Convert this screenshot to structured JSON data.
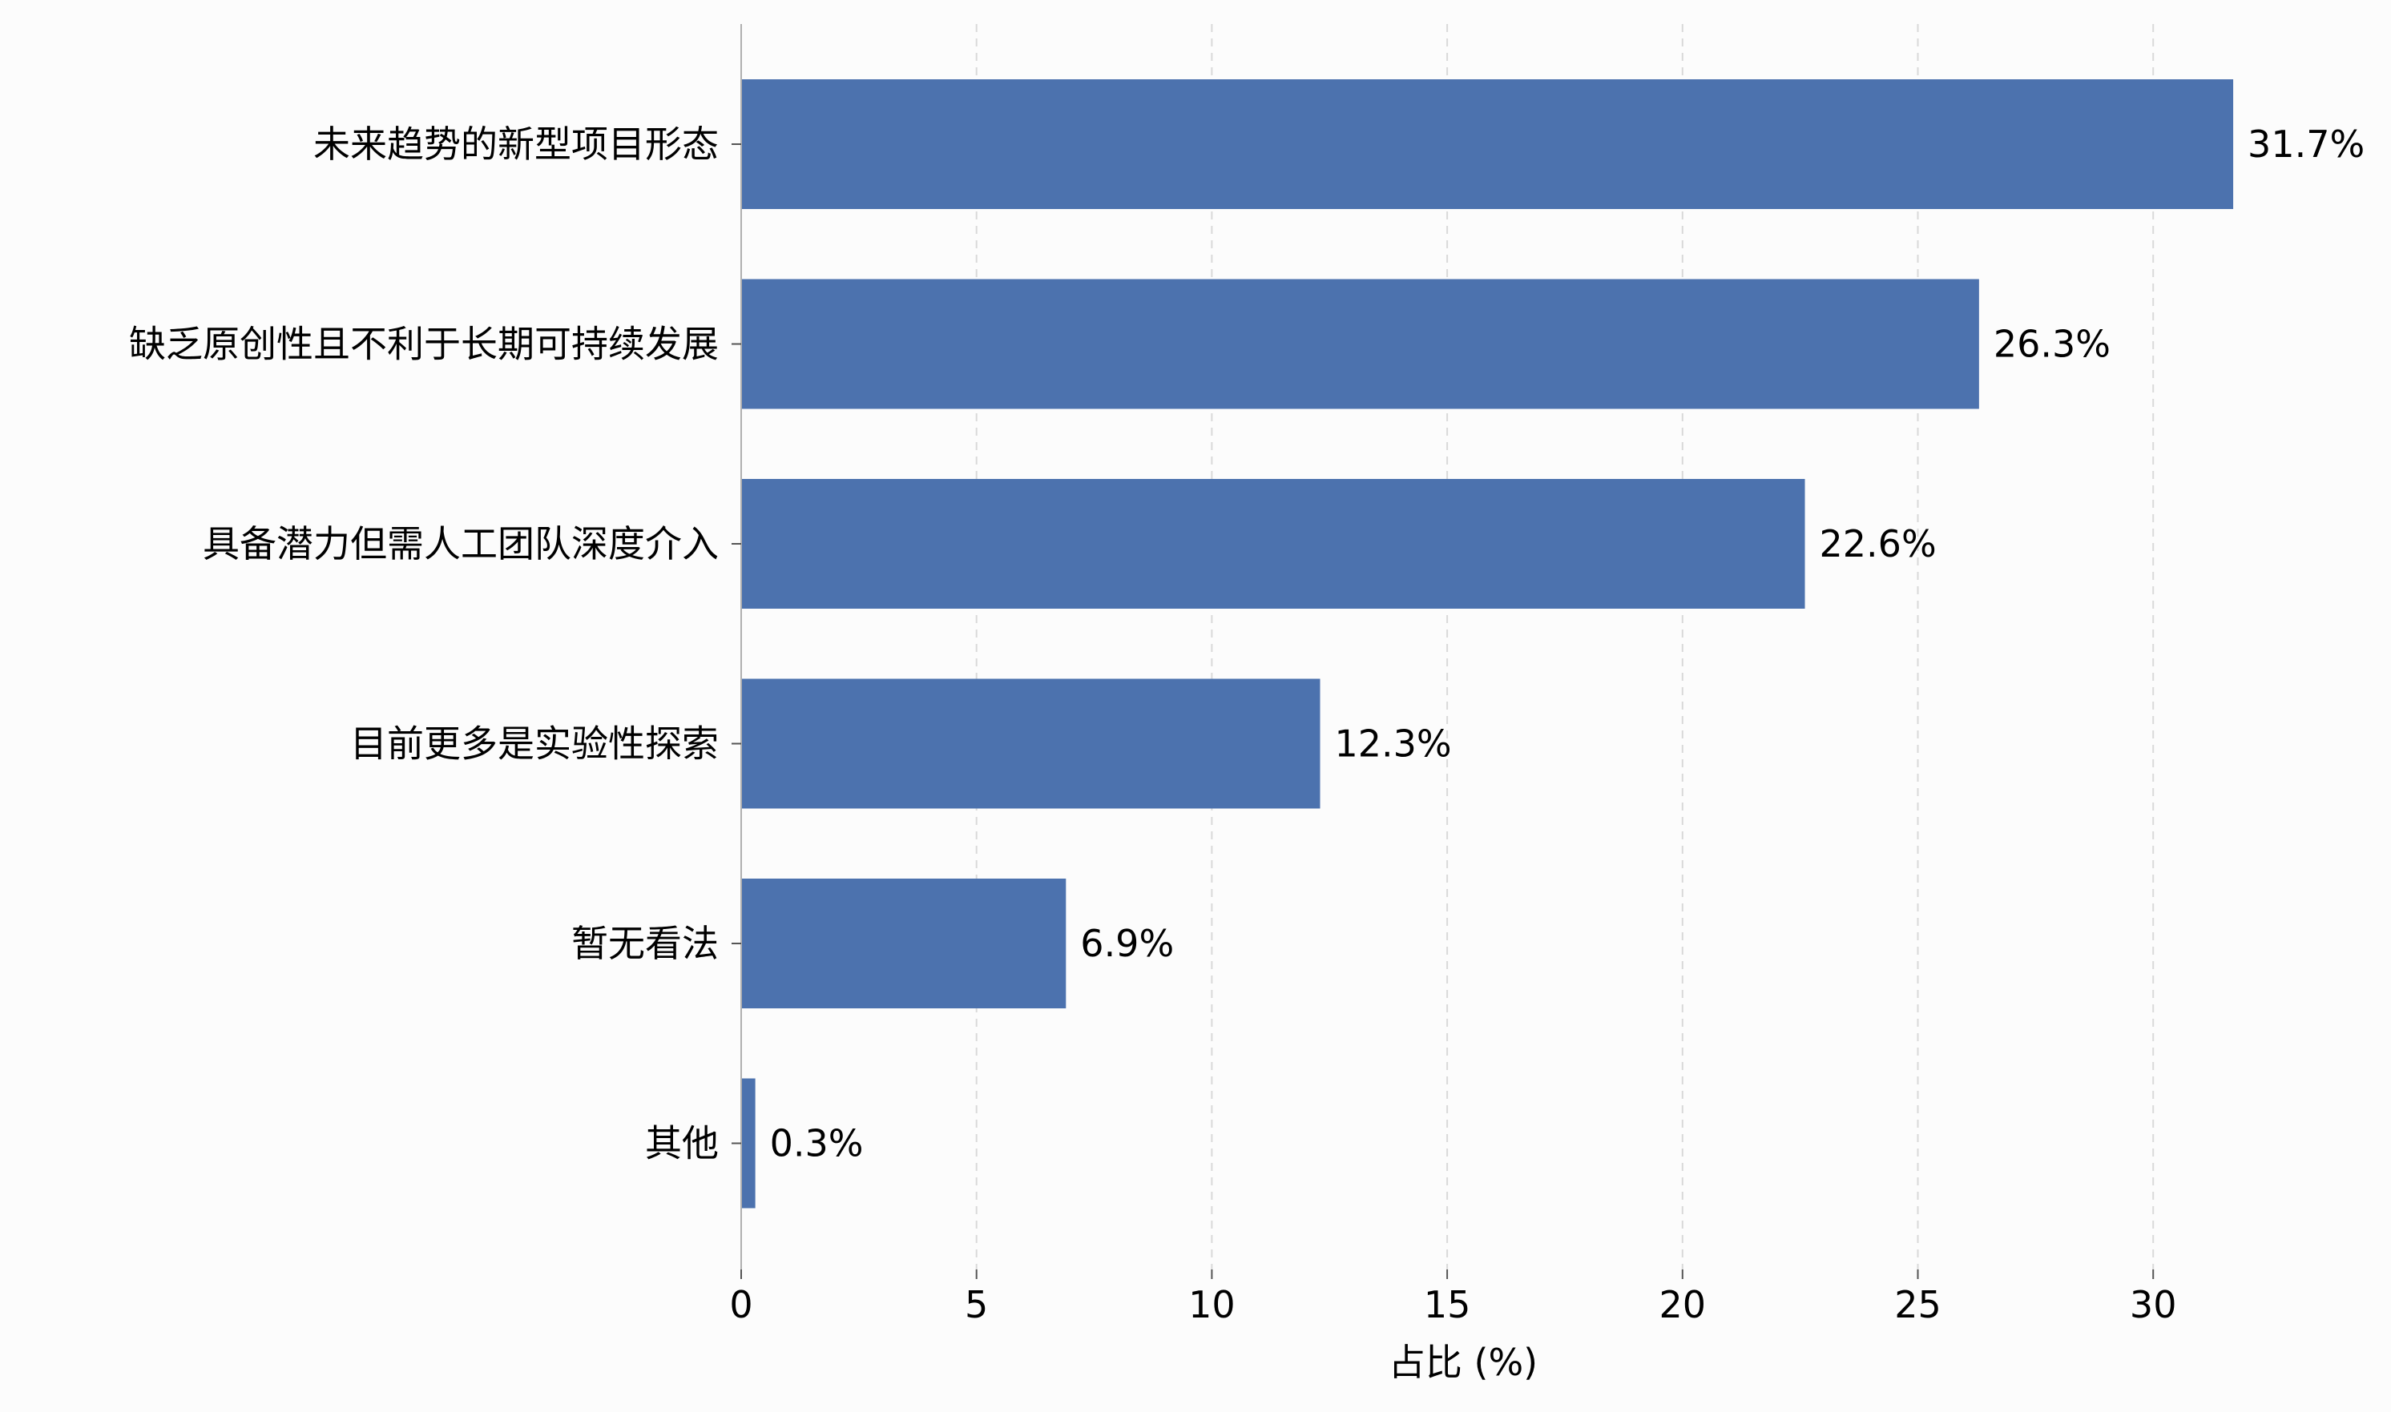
{
  "chart_data": {
    "type": "bar",
    "orientation": "horizontal",
    "categories": [
      "未来趋势的新型项目形态",
      "缺乏原创性且不利于长期可持续发展",
      "具备潜力但需人工团队深度介入",
      "目前更多是实验性探索",
      "暂无看法",
      "其他"
    ],
    "values": [
      31.7,
      26.3,
      22.6,
      12.3,
      6.9,
      0.3
    ],
    "value_labels": [
      "31.7%",
      "26.3%",
      "22.6%",
      "12.3%",
      "6.9%",
      "0.3%"
    ],
    "xlabel": "占比 (%)",
    "ylabel": "",
    "title": "",
    "xlim": [
      0,
      34
    ],
    "xticks": [
      0,
      5,
      10,
      15,
      20,
      25,
      30
    ],
    "grid": "x, dashed",
    "colors": {
      "bar": "#4c72ae",
      "grid": "#d9d9d9",
      "axis": "#b0b0b0",
      "text": "#000000",
      "background": "#fcfcfc"
    }
  }
}
